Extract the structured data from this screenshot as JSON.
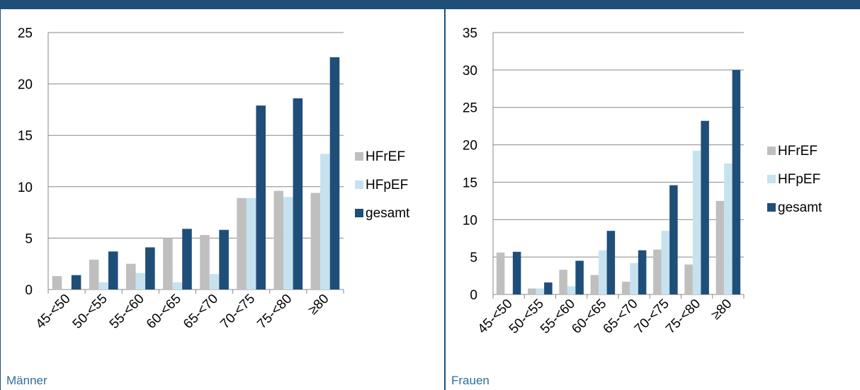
{
  "colors": {
    "header": "#1f4e79",
    "caption": "#2e6da4",
    "HFrEF": "#bfbfbf",
    "HFpEF": "#c6e2f0",
    "gesamt": "#1f4e79",
    "grid": "#888888"
  },
  "chart_data": [
    {
      "type": "bar",
      "caption": "Männer",
      "categories": [
        "45-<50",
        "50-<55",
        "55-<60",
        "60-<65",
        "65-<70",
        "70-<75",
        "75-<80",
        "≥80"
      ],
      "series": [
        {
          "name": "HFrEF",
          "values": [
            1.3,
            2.9,
            2.5,
            5.0,
            5.3,
            8.9,
            9.6,
            9.4
          ]
        },
        {
          "name": "HFpEF",
          "values": [
            0.0,
            0.7,
            1.6,
            0.7,
            1.5,
            8.9,
            9.0,
            13.2
          ]
        },
        {
          "name": "gesamt",
          "values": [
            1.4,
            3.7,
            4.1,
            5.9,
            5.8,
            17.9,
            18.6,
            22.6
          ]
        }
      ],
      "ylim": [
        0,
        25
      ],
      "yticks": [
        0,
        5,
        10,
        15,
        20,
        25
      ],
      "grid": true,
      "legend": "right"
    },
    {
      "type": "bar",
      "caption": "Frauen",
      "categories": [
        "45-<50",
        "50-<55",
        "55-<60",
        "60-<65",
        "65-<70",
        "70-<75",
        "75-<80",
        "≥80"
      ],
      "series": [
        {
          "name": "HFrEF",
          "values": [
            5.6,
            0.8,
            3.3,
            2.6,
            1.7,
            6.0,
            4.0,
            12.5
          ]
        },
        {
          "name": "HFpEF",
          "values": [
            0.0,
            0.8,
            1.1,
            5.9,
            4.2,
            8.5,
            19.2,
            17.5
          ]
        },
        {
          "name": "gesamt",
          "values": [
            5.7,
            1.6,
            4.5,
            8.5,
            5.9,
            14.6,
            23.2,
            30.0
          ]
        }
      ],
      "ylim": [
        0,
        35
      ],
      "yticks": [
        0,
        5,
        10,
        15,
        20,
        25,
        30,
        35
      ],
      "grid": true,
      "legend": "right"
    }
  ]
}
